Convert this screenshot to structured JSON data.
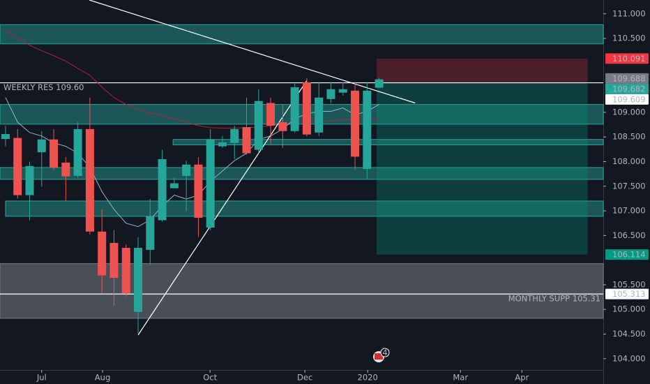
{
  "chart_data": {
    "type": "candlestick",
    "open": [
      108.46,
      108.48,
      107.32,
      108.19,
      108.45,
      107.98,
      107.71,
      108.66,
      106.58,
      106.35,
      106.25,
      104.95,
      106.21,
      106.81,
      107.46,
      107.71,
      107.94,
      106.66,
      108.31,
      108.38,
      108.7,
      108.24,
      109.19,
      108.8,
      108.62,
      109.61,
      108.59,
      109.27,
      109.4,
      109.44,
      107.85,
      109.5
    ],
    "high": [
      108.73,
      108.66,
      108.0,
      108.62,
      108.66,
      108.09,
      108.8,
      109.3,
      107.03,
      106.61,
      106.32,
      106.47,
      107.24,
      108.24,
      107.67,
      108.02,
      108.09,
      108.66,
      108.52,
      108.73,
      109.3,
      109.47,
      109.3,
      109.16,
      109.58,
      109.7,
      109.61,
      109.61,
      109.61,
      109.61,
      109.61,
      109.7
    ],
    "low": [
      108.31,
      107.25,
      106.81,
      107.49,
      107.83,
      107.2,
      107.67,
      106.52,
      105.33,
      105.08,
      105.26,
      104.51,
      105.9,
      106.78,
      107.46,
      106.99,
      106.47,
      106.61,
      108.28,
      108.05,
      108.14,
      108.17,
      108.36,
      108.28,
      108.59,
      108.51,
      108.52,
      109.19,
      109.34,
      107.84,
      107.66,
      109.5
    ],
    "close": [
      108.56,
      107.32,
      107.91,
      108.45,
      107.88,
      107.7,
      108.66,
      106.58,
      105.69,
      105.64,
      105.33,
      106.25,
      106.89,
      108.05,
      107.56,
      107.94,
      106.86,
      108.45,
      108.39,
      108.66,
      108.17,
      109.23,
      108.73,
      108.62,
      109.51,
      108.55,
      109.3,
      109.47,
      109.47,
      108.1,
      109.44,
      109.67
    ],
    "up_color": "#26a69a",
    "down_color": "#ef5350",
    "moving_averages": [
      {
        "color": "#b2223a",
        "values": [
          110.65,
          110.51,
          110.36,
          110.25,
          110.15,
          110.04,
          109.89,
          109.75,
          109.51,
          109.3,
          109.16,
          109.06,
          108.99,
          108.93,
          108.87,
          108.8,
          108.73,
          108.69,
          108.68,
          108.68,
          108.69,
          108.7,
          108.73,
          108.76,
          108.79,
          108.8,
          108.82,
          108.83,
          108.85,
          108.86,
          108.86,
          108.87
        ]
      },
      {
        "color": "#8fb8c8",
        "values": [
          109.3,
          108.8,
          108.59,
          108.52,
          108.38,
          108.31,
          108.17,
          107.88,
          107.39,
          107.03,
          106.75,
          106.68,
          106.82,
          107.1,
          107.32,
          107.24,
          107.32,
          107.6,
          107.81,
          108.02,
          108.17,
          108.45,
          108.52,
          108.66,
          108.87,
          108.97,
          109.02,
          109.02,
          109.09,
          108.95,
          109.02,
          109.16
        ]
      }
    ],
    "zones": [
      {
        "low": 110.39,
        "high": 110.78,
        "from": -0.46,
        "color": "#26a69a"
      },
      {
        "low": 108.76,
        "high": 109.16,
        "from": -0.46,
        "color": "#26a69a"
      },
      {
        "low": 108.34,
        "high": 108.45,
        "from": 13.9,
        "color": "#26a69a"
      },
      {
        "low": 107.64,
        "high": 107.88,
        "from": -0.46,
        "color": "#26a69a"
      },
      {
        "low": 106.89,
        "high": 107.2,
        "from": 0,
        "color": "#26a69a"
      },
      {
        "low": 104.82,
        "high": 105.93,
        "from": -0.46,
        "color": "#787b86"
      }
    ],
    "trendlines": [
      {
        "x": [
          6.95,
          33.99
        ],
        "y": [
          111.28,
          109.19
        ]
      },
      {
        "x": [
          11.0,
          25.01
        ],
        "y": [
          104.48,
          109.65
        ]
      }
    ],
    "levels": [
      {
        "value": 109.6,
        "label": "WEEKLY RES 109.60",
        "side": "left"
      },
      {
        "value": 105.313,
        "label": "MONTHLY SUPP 105.31",
        "side": "right"
      }
    ],
    "position": {
      "from": 30.8,
      "to": 48.3,
      "entry": 109.61,
      "stop": 110.091,
      "target": 106.114
    },
    "price_labels": [
      {
        "value": 110.091,
        "color": "#f23645",
        "text_color": "#ffffff"
      },
      {
        "value": 109.688,
        "color": "#787b86",
        "text_color": "#ffffff"
      },
      {
        "value": 109.682,
        "color": "#26a69a",
        "text_color": "#ffffff"
      },
      {
        "value": 109.609,
        "color": "#ffffff",
        "text_color": "#131722"
      },
      {
        "value": 106.114,
        "color": "#089981",
        "text_color": "#ffffff"
      },
      {
        "value": 105.313,
        "color": "#ffffff",
        "text_color": "#131722"
      }
    ],
    "events_badge": 4,
    "xlim": [
      -0.46,
      49.6
    ],
    "ylim": [
      103.77,
      111.28
    ],
    "xticks": [
      {
        "value": 3.0,
        "label": "Jul"
      },
      {
        "value": 8.05,
        "label": "Aug"
      },
      {
        "value": 16.97,
        "label": "Oct"
      },
      {
        "value": 24.84,
        "label": "Dec"
      },
      {
        "value": 30.05,
        "label": "2020"
      },
      {
        "value": 37.75,
        "label": "Mar"
      },
      {
        "value": 42.85,
        "label": "Apr"
      }
    ],
    "yticks": [
      {
        "value": 111,
        "label": "111.000"
      },
      {
        "value": 110.5,
        "label": "110.500"
      },
      {
        "value": 109,
        "label": "109.000"
      },
      {
        "value": 108.5,
        "label": "108.500"
      },
      {
        "value": 108,
        "label": "108.000"
      },
      {
        "value": 107.5,
        "label": "107.500"
      },
      {
        "value": 107,
        "label": "107.000"
      },
      {
        "value": 106.5,
        "label": "106.500"
      },
      {
        "value": 105.5,
        "label": "105.500"
      },
      {
        "value": 105,
        "label": "105.000"
      },
      {
        "value": 104.5,
        "label": "104.500"
      },
      {
        "value": 104,
        "label": "104.000"
      }
    ]
  }
}
